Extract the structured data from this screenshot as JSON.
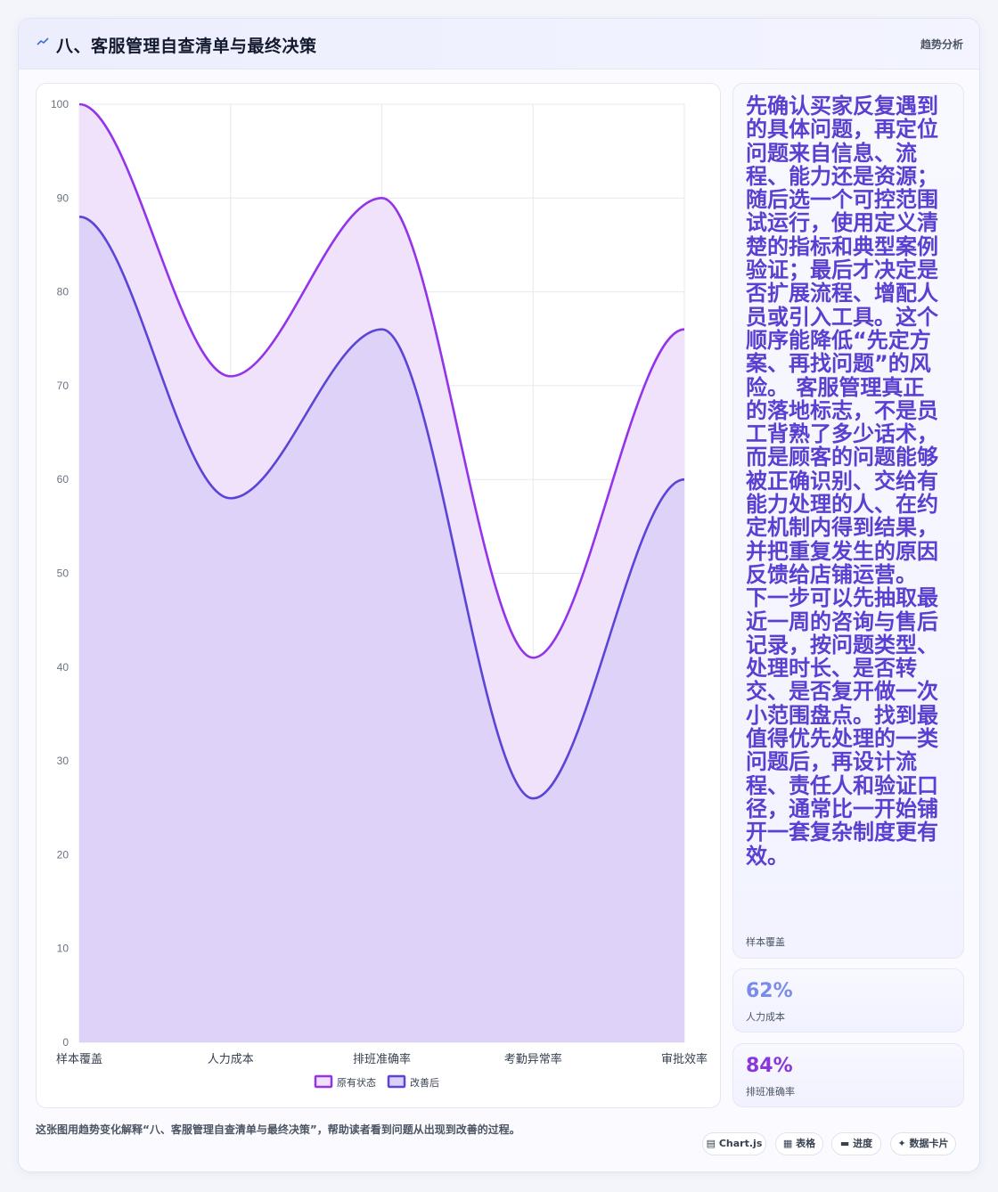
{
  "header": {
    "title": "八、客服管理自查清单与最终决策",
    "tag": "趋势分析"
  },
  "side_panel": {
    "description": "先确认买家反复遇到的具体问题，再定位问题来自信息、流程、能力还是资源；随后选一个可控范围试运行，使用定义清楚的指标和典型案例验证；最后才决定是否扩展流程、增配人员或引入工具。这个顺序能降低“先定方案、再找问题”的风险。 客服管理真正的落地标志，不是员工背熟了多少话术，而是顾客的问题能够被正确识别、交给有能力处理的人、在约定机制内得到结果，并把重复发生的原因反馈给店铺运营。 下一步可以先抽取最近一周的咨询与售后记录，按问题类型、处理时长、是否转交、是否复开做一次小范围盘点。找到最值得优先处理的一类问题后，再设计流程、责任人和验证口径，通常比一开始铺开一套复杂制度更有效。",
    "caption": "样本覆盖"
  },
  "stats": [
    {
      "value": "62%",
      "label": "人力成本",
      "color": "#7b8bea"
    },
    {
      "value": "84%",
      "label": "排班准确率",
      "color": "#8a36d8"
    }
  ],
  "footer": {
    "note": "这张图用趋势变化解释“八、客服管理自查清单与最终决策”，帮助读者看到问题从出现到改善的过程。",
    "chips": [
      "Chart.js",
      "表格",
      "进度",
      "数据卡片"
    ]
  },
  "chart_data": {
    "type": "area",
    "categories": [
      "样本覆盖",
      "人力成本",
      "排班准确率",
      "考勤异常率",
      "审批效率"
    ],
    "series": [
      {
        "name": "原有状态",
        "values": [
          100,
          71,
          90,
          41,
          76
        ],
        "color": "#9333ea",
        "fill": "#f0e2fb"
      },
      {
        "name": "改善后",
        "values": [
          88,
          58,
          76,
          26,
          60
        ],
        "color": "#5b45d6",
        "fill": "#dcd0f8"
      }
    ],
    "ylim": [
      0,
      100
    ],
    "yticks": [
      0,
      10,
      20,
      30,
      40,
      50,
      60,
      70,
      80,
      90,
      100
    ],
    "grid": true,
    "legend": "bottom"
  }
}
